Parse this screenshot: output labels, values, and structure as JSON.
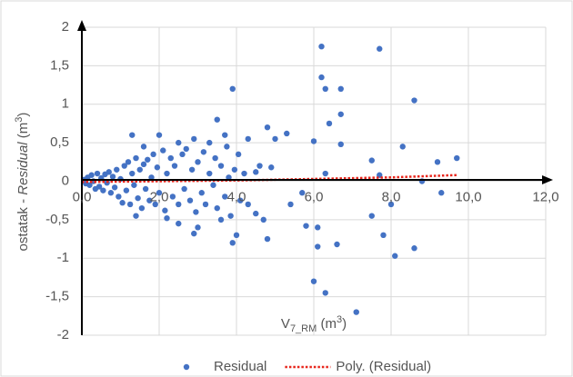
{
  "chart_data": {
    "type": "scatter",
    "xlabel": {
      "main": "V",
      "sub": "7_RM",
      "suffix": " (m",
      "sup": "3",
      "end": ")"
    },
    "ylabel": {
      "prefix": "ostatak - ",
      "italic": "Residual",
      "suffix": " (m",
      "sup": "3",
      "end": ")"
    },
    "xlim": [
      0,
      12
    ],
    "ylim": [
      -2,
      2
    ],
    "xticks": [
      {
        "value": 0,
        "label": "0,0"
      },
      {
        "value": 2,
        "label": "2,0"
      },
      {
        "value": 4,
        "label": "4,0"
      },
      {
        "value": 6,
        "label": "6,0"
      },
      {
        "value": 8,
        "label": "8,0"
      },
      {
        "value": 10,
        "label": "10,0"
      },
      {
        "value": 12,
        "label": "12,0"
      }
    ],
    "yticks": [
      -2,
      {
        "value": -1.5,
        "label": "-1,5"
      },
      -1,
      {
        "value": -0.5,
        "label": "-0,5"
      },
      0,
      {
        "value": 0.5,
        "label": "0,5"
      },
      1,
      {
        "value": 1.5,
        "label": "1,5"
      },
      2
    ],
    "grid": true,
    "legend": "bottom",
    "series": [
      {
        "name": "Residual",
        "color": "#4472c4",
        "kind": "scatter",
        "x": [
          0.05,
          0.1,
          0.15,
          0.2,
          0.25,
          0.3,
          0.35,
          0.4,
          0.45,
          0.5,
          0.55,
          0.6,
          0.65,
          0.7,
          0.75,
          0.8,
          0.85,
          0.9,
          0.95,
          1.0,
          1.05,
          1.1,
          1.15,
          1.2,
          1.25,
          1.3,
          1.35,
          1.4,
          1.45,
          1.5,
          1.55,
          1.6,
          1.65,
          1.7,
          1.75,
          1.8,
          1.85,
          1.9,
          1.95,
          2.0,
          2.1,
          2.15,
          2.2,
          2.3,
          2.35,
          2.4,
          2.5,
          2.6,
          2.65,
          2.7,
          2.8,
          2.85,
          2.95,
          3.0,
          3.1,
          3.15,
          3.2,
          3.3,
          3.4,
          3.45,
          3.5,
          3.6,
          3.7,
          3.75,
          3.8,
          3.85,
          3.95,
          4.05,
          4.1,
          4.2,
          4.3,
          6.2,
          7.7,
          6.2,
          6.3,
          6.7,
          3.9,
          8.6,
          6.7,
          6.4,
          3.5,
          5.3,
          6.0,
          4.8,
          6.7,
          8.3,
          9.7,
          9.2,
          7.5,
          7.7,
          8.8,
          9.3,
          8.0,
          7.5,
          7.8,
          8.1,
          8.6,
          6.1,
          6.6,
          5.8,
          6.1,
          6.0,
          6.3,
          7.1,
          4.8,
          3.9,
          4.0,
          4.7,
          4.5,
          3.6,
          3.0,
          2.9,
          2.5,
          2.2,
          1.4,
          5.4,
          5.7,
          5.0,
          4.3,
          4.6,
          4.9,
          4.5,
          3.7,
          3.3,
          2.9,
          2.5,
          2.0,
          1.3,
          1.6,
          6.3
        ],
        "values": [
          0.02,
          -0.03,
          0.05,
          -0.05,
          0.08,
          0.0,
          -0.1,
          0.1,
          -0.07,
          0.04,
          -0.12,
          0.09,
          -0.02,
          0.12,
          -0.15,
          0.06,
          -0.08,
          0.15,
          -0.2,
          0.03,
          -0.28,
          0.2,
          -0.12,
          0.25,
          -0.3,
          0.1,
          -0.05,
          0.3,
          -0.22,
          0.15,
          -0.35,
          0.22,
          -0.1,
          0.28,
          -0.25,
          0.05,
          0.35,
          -0.3,
          0.18,
          -0.15,
          0.4,
          -0.38,
          0.1,
          0.3,
          -0.2,
          0.2,
          -0.3,
          0.35,
          -0.1,
          0.42,
          -0.25,
          0.15,
          -0.4,
          0.25,
          -0.15,
          0.38,
          -0.3,
          0.1,
          -0.05,
          0.3,
          -0.35,
          0.2,
          -0.2,
          0.45,
          0.05,
          -0.45,
          0.15,
          0.35,
          -0.25,
          0.1,
          -0.3,
          1.75,
          1.72,
          1.35,
          1.2,
          1.2,
          1.2,
          1.05,
          0.87,
          0.75,
          0.8,
          0.62,
          0.52,
          0.7,
          0.48,
          0.45,
          0.3,
          0.25,
          0.27,
          0.08,
          0.0,
          -0.15,
          -0.3,
          -0.45,
          -0.7,
          -0.97,
          -0.87,
          -0.85,
          -0.82,
          -0.58,
          -0.6,
          -1.3,
          -1.45,
          -1.7,
          -0.75,
          -0.8,
          -0.7,
          -0.5,
          -0.42,
          -0.5,
          -0.6,
          -0.68,
          -0.55,
          -0.48,
          -0.45,
          -0.3,
          -0.15,
          0.55,
          0.55,
          0.2,
          0.18,
          0.12,
          0.6,
          0.5,
          0.55,
          0.5,
          0.6,
          0.6,
          0.45,
          0.1
        ]
      },
      {
        "name": "Poly. (Residual)",
        "color": "#e8261c",
        "kind": "line",
        "x": [
          0,
          2,
          4,
          6,
          8,
          9.7
        ],
        "values": [
          -0.01,
          0.0,
          0.01,
          0.03,
          0.05,
          0.08
        ]
      }
    ]
  }
}
